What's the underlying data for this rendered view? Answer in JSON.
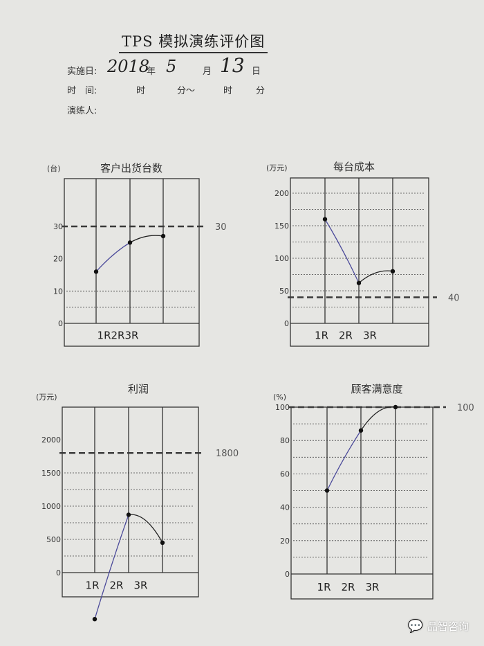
{
  "header": {
    "title": "TPS 模拟演练评价图",
    "date_label": "实施日:",
    "year": "2018",
    "year_unit": "年",
    "month": "5",
    "month_unit": "月",
    "day": "13",
    "day_unit": "日",
    "time_label": "时　间:",
    "hour_unit_1": "时",
    "minute_unit_1": "分～",
    "hour_unit_2": "时",
    "minute_unit_2": "分",
    "person_label": "演练人:"
  },
  "watermark": {
    "text": "品智咨询",
    "icon": "wechat-icon"
  },
  "chart_data": [
    {
      "type": "line",
      "title": "客户出货台数",
      "ylabel": "(台)",
      "categories": [
        "1R",
        "2R",
        "3R"
      ],
      "category_label": "1R2R3R",
      "yticks": [
        0,
        10,
        20,
        30
      ],
      "ylim": [
        0,
        30
      ],
      "target": 30,
      "target_label": "30",
      "values": [
        16,
        25,
        27
      ],
      "segment_colors": [
        "#4b4a9a",
        "#222222"
      ]
    },
    {
      "type": "line",
      "title": "每台成本",
      "ylabel": "(万元)",
      "categories": [
        "1R",
        "2R",
        "3R"
      ],
      "category_label": "1R　2R　3R",
      "yticks": [
        0,
        50,
        100,
        150,
        200
      ],
      "ylim": [
        0,
        200
      ],
      "target": 40,
      "target_label": "40",
      "values": [
        160,
        62,
        80
      ],
      "segment_colors": [
        "#4b4a9a",
        "#222222"
      ]
    },
    {
      "type": "line",
      "title": "利润",
      "ylabel": "(万元)",
      "categories": [
        "1R",
        "2R",
        "3R"
      ],
      "category_label": "1R　2R　3R",
      "yticks": [
        0,
        500,
        1000,
        1500,
        2000
      ],
      "ylim": [
        0,
        2000
      ],
      "target": 1800,
      "target_label": "1800",
      "values": [
        -700,
        870,
        450
      ],
      "segment_colors": [
        "#4b4a9a",
        "#222222"
      ]
    },
    {
      "type": "line",
      "title": "顾客满意度",
      "ylabel": "(%)",
      "categories": [
        "1R",
        "2R",
        "3R"
      ],
      "category_label": "1R　2R　3R",
      "yticks": [
        0,
        20,
        40,
        60,
        80,
        100
      ],
      "ylim": [
        0,
        100
      ],
      "target": 100,
      "target_label": "100",
      "values": [
        50,
        86,
        100
      ],
      "segment_colors": [
        "#4b4a9a",
        "#222222"
      ]
    }
  ]
}
